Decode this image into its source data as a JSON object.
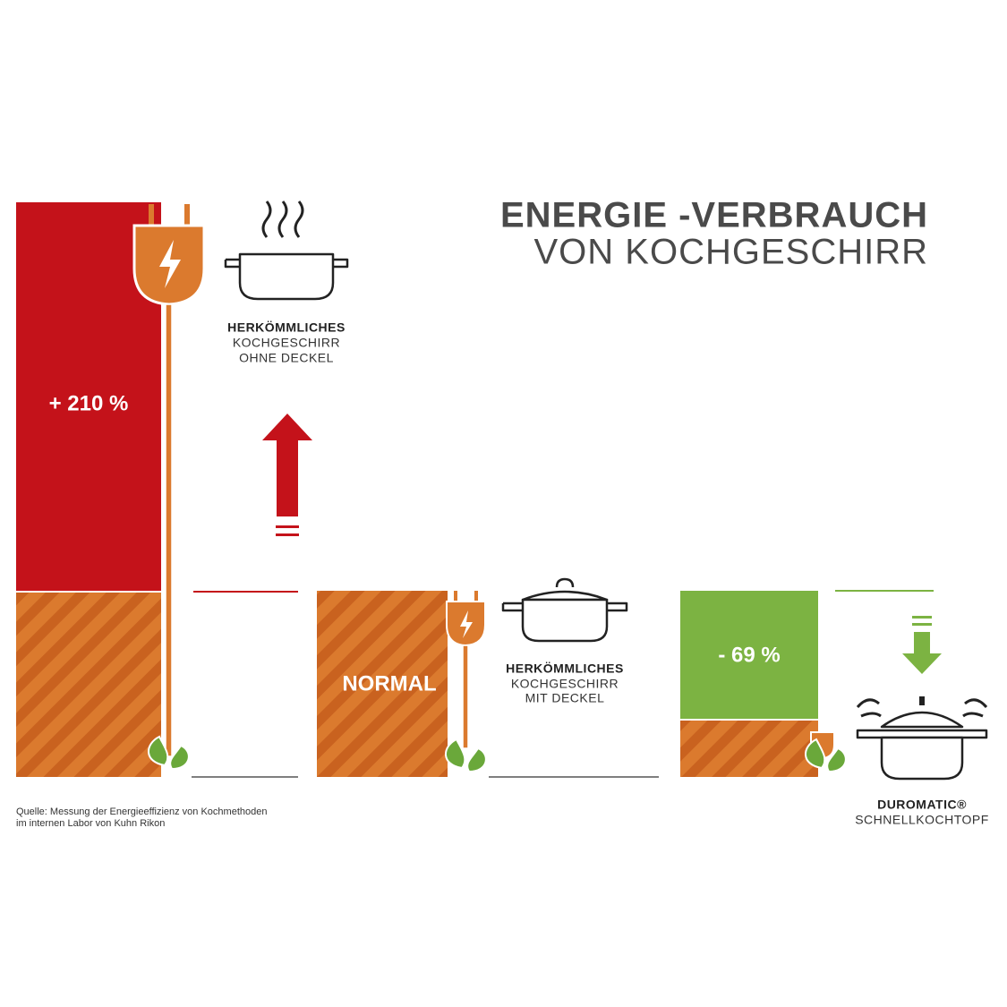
{
  "title": {
    "line1": "ENERGIE -VERBRAUCH",
    "line2": "VON KOCHGESCHIRR"
  },
  "columns": [
    {
      "value_label": "+ 210 %",
      "name_bold": "HERKÖMMLICHES",
      "name_lines": [
        "KOCHGESCHIRR",
        "OHNE DECKEL"
      ]
    },
    {
      "value_label": "NORMAL",
      "name_bold": "HERKÖMMLICHES",
      "name_lines": [
        "KOCHGESCHIRR",
        "MIT DECKEL"
      ]
    },
    {
      "value_label": "- 69 %",
      "name_bold": "DUROMATIC®",
      "name_lines": [
        "SCHNELLKOCHTOPF"
      ]
    }
  ],
  "source": [
    "Quelle: Messung der Energieeffizienz von Kochmethoden",
    "im internen Labor von Kuhn Rikon"
  ]
}
